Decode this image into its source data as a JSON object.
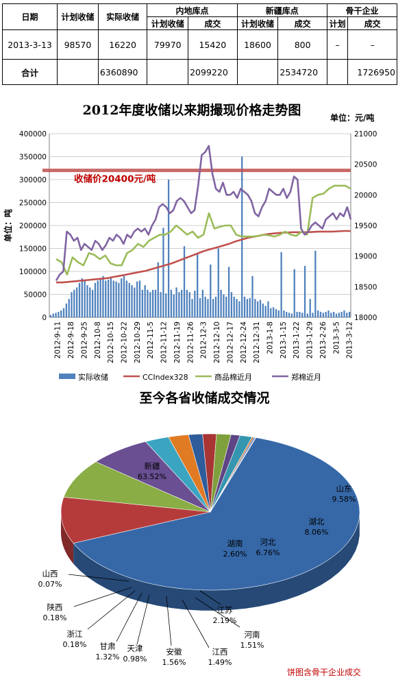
{
  "table": {
    "h_date": "日期",
    "h_plan": "计划收储",
    "h_actual": "实际收储",
    "h_inland": "内地库点",
    "h_xinjiang": "新疆库点",
    "h_backbone": "骨干企业",
    "sub_plan": "计划收储",
    "sub_deal": "成交",
    "sub_plan2": "计划收储",
    "sub_deal2": "成交",
    "sub_plan3": "计划",
    "sub_deal3": "成交",
    "row": {
      "date": "2013-3-13",
      "plan": "98570",
      "actual": "16220",
      "inland_plan": "79970",
      "inland_deal": "15420",
      "xj_plan": "18600",
      "xj_deal": "800",
      "bb_plan": "–",
      "bb_deal": "–"
    },
    "total": {
      "label": "合计",
      "actual": "6360890",
      "inland_deal": "2099220",
      "xj_deal": "2534720",
      "bb_deal": "1726950"
    }
  },
  "chart_data": [
    {
      "type": "bar+line",
      "title": "2012年度收储以来期撮现价格走势图",
      "unit_right": "单位：元/吨",
      "ylabel": "单位：吨",
      "ylim": [
        0,
        400000
      ],
      "y2lim": [
        18000,
        21000
      ],
      "yticks": [
        "0",
        "50000",
        "100000",
        "150000",
        "200000",
        "250000",
        "300000",
        "350000",
        "400000"
      ],
      "y2ticks": [
        "18000",
        "18500",
        "19000",
        "19500",
        "20000",
        "20500",
        "21000"
      ],
      "xticks": [
        "2012-9-11",
        "2012-9-18",
        "2012-9-25",
        "2012-10-8",
        "2012-10-15",
        "2012-10-22",
        "2012-10-29",
        "2012-11-5",
        "2012-11-12",
        "2012-11-19",
        "2012-11-26",
        "2012-12-3",
        "2012-12-10",
        "2012-12-17",
        "2012-12-24",
        "2012-12-31",
        "2013-1-8",
        "2013-1-15",
        "2013-1-22",
        "2013-1-29",
        "2013-2-26",
        "2013-3-5",
        "2013-3-12"
      ],
      "reference": {
        "value": 20400,
        "label": "收储价20400元/吨"
      },
      "series": [
        {
          "name": "实际收储",
          "kind": "bar",
          "color": "#4f81bd",
          "values": [
            5000,
            8000,
            10000,
            12000,
            15000,
            20000,
            30000,
            40000,
            55000,
            60000,
            65000,
            75000,
            85000,
            80000,
            70000,
            65000,
            60000,
            75000,
            80000,
            85000,
            90000,
            80000,
            82000,
            85000,
            80000,
            78000,
            75000,
            85000,
            90000,
            80000,
            75000,
            70000,
            65000,
            78000,
            80000,
            60000,
            70000,
            60000,
            55000,
            60000,
            60000,
            120000,
            55000,
            195000,
            52000,
            300000,
            60000,
            50000,
            65000,
            55000,
            60000,
            155000,
            60000,
            55000,
            40000,
            58000,
            140000,
            42000,
            60000,
            45000,
            40000,
            115000,
            40000,
            45000,
            150000,
            60000,
            50000,
            45000,
            110000,
            55000,
            45000,
            40000,
            35000,
            350000,
            45000,
            40000,
            42000,
            90000,
            40000,
            35000,
            38000,
            30000,
            25000,
            35000,
            20000,
            22000,
            18000,
            15000,
            142000,
            15000,
            12000,
            10000,
            8000,
            105000,
            12000,
            12000,
            10000,
            112000,
            8000,
            40000,
            10000,
            145000,
            15000,
            12000,
            10000,
            12000,
            15000,
            10000,
            12000,
            8000,
            10000,
            12000,
            15000,
            10000,
            12000
          ]
        },
        {
          "name": "CCIndex328",
          "kind": "line",
          "color": "#c0504d",
          "values": [
            18570,
            18570,
            18580,
            18590,
            18600,
            18610,
            18620,
            18630,
            18640,
            18660,
            18680,
            18700,
            18720,
            18740,
            18760,
            18790,
            18820,
            18850,
            18880,
            18920,
            18960,
            19000,
            19040,
            19080,
            19110,
            19140,
            19170,
            19200,
            19240,
            19270,
            19300,
            19320,
            19340,
            19360,
            19370,
            19380,
            19385,
            19390,
            19390,
            19390,
            19395,
            19400,
            19400,
            19400,
            19405,
            19410,
            19410
          ]
        },
        {
          "name": "商品棉近月",
          "kind": "line",
          "color": "#9bbb59",
          "values": [
            18950,
            18900,
            18700,
            18980,
            18900,
            18850,
            19050,
            19020,
            18950,
            19010,
            18880,
            18850,
            18850,
            19050,
            19100,
            19200,
            19150,
            19250,
            19300,
            19350,
            19350,
            19400,
            19500,
            19430,
            19350,
            19400,
            19300,
            19350,
            19700,
            19450,
            19480,
            19500,
            19500,
            19350,
            19320,
            19320,
            19320,
            19330,
            19350,
            19340,
            19320,
            19350,
            19400,
            19350,
            19330,
            19400,
            19350,
            19950,
            20000,
            20020,
            20100,
            20150,
            20150,
            20150,
            20100
          ]
        },
        {
          "name": "郑棉近月",
          "kind": "line",
          "color": "#8064a2",
          "values": [
            18600,
            18700,
            18750,
            19400,
            19350,
            19250,
            19300,
            19100,
            19200,
            19150,
            19100,
            19250,
            19200,
            19100,
            19180,
            19300,
            19250,
            19350,
            19300,
            19200,
            19350,
            19300,
            19400,
            19450,
            19400,
            19450,
            19350,
            19500,
            19600,
            19800,
            19850,
            19800,
            19700,
            19750,
            19900,
            19950,
            19900,
            19800,
            19700,
            19750,
            20150,
            20650,
            20700,
            20800,
            20350,
            20100,
            20050,
            20200,
            20000,
            20000,
            20050,
            19950,
            20100,
            20050,
            20000,
            19900,
            19700,
            19650,
            19800,
            19900,
            20100,
            20050,
            20000,
            20000,
            20100,
            19950,
            20050,
            20300,
            20250,
            19450,
            19350,
            19400,
            19500,
            19550,
            19500,
            19450,
            19600,
            19650,
            19700,
            19600,
            19700,
            19650,
            19800,
            19600
          ]
        }
      ]
    },
    {
      "type": "pie",
      "title": "至今各省收储成交情况",
      "note": "饼图含骨干企业成交",
      "slices": [
        {
          "name": "新疆",
          "value": 63.52,
          "label": "63.52%",
          "color": "#3668a8"
        },
        {
          "name": "山东",
          "value": 9.58,
          "label": "9.58%",
          "color": "#b53b3b"
        },
        {
          "name": "湖北",
          "value": 8.06,
          "label": "8.06%",
          "color": "#8aad45"
        },
        {
          "name": "河北",
          "value": 6.76,
          "label": "6.76%",
          "color": "#6a4f92"
        },
        {
          "name": "湖南",
          "value": 2.6,
          "label": "2.60%",
          "color": "#3ba4c0"
        },
        {
          "name": "江苏",
          "value": 2.19,
          "label": "2.19%",
          "color": "#e07b24"
        },
        {
          "name": "河南",
          "value": 1.51,
          "label": "1.51%",
          "color": "#2f5c9a"
        },
        {
          "name": "江西",
          "value": 1.49,
          "label": "1.49%",
          "color": "#a83434"
        },
        {
          "name": "安徽",
          "value": 1.56,
          "label": "1.56%",
          "color": "#7fa03c"
        },
        {
          "name": "天津",
          "value": 0.98,
          "label": "0.98%",
          "color": "#5e4585"
        },
        {
          "name": "甘肃",
          "value": 1.32,
          "label": "1.32%",
          "color": "#3596b0"
        },
        {
          "name": "浙江",
          "value": 0.18,
          "label": "0.18%",
          "color": "#d87020"
        },
        {
          "name": "陕西",
          "value": 0.18,
          "label": "0.18%",
          "color": "#4a78b8"
        },
        {
          "name": "山西",
          "value": 0.07,
          "label": "0.07%",
          "color": "#c04848"
        }
      ]
    }
  ]
}
